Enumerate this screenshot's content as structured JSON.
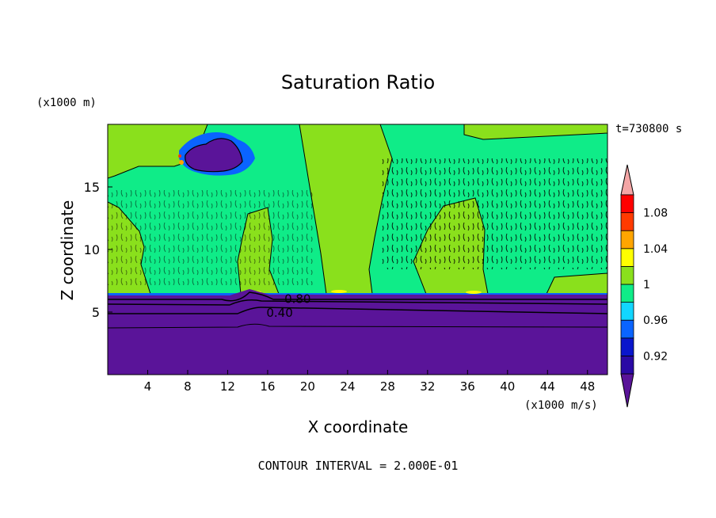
{
  "chart_data": {
    "type": "heatmap",
    "title": "Saturation Ratio",
    "xlabel": "X coordinate",
    "ylabel": "Z coordinate",
    "x_unit": "(x1000 m/s)",
    "y_unit": "(x1000 m)",
    "time_label": "t=730800 s",
    "footer": "CONTOUR INTERVAL = 2.000E-01",
    "xlim": [
      0,
      50
    ],
    "ylim": [
      0,
      20
    ],
    "x_ticks": [
      4,
      8,
      12,
      16,
      20,
      24,
      28,
      32,
      36,
      40,
      44,
      48
    ],
    "y_ticks": [
      5,
      10,
      15
    ],
    "colorbar": {
      "levels": [
        0.9,
        0.92,
        0.94,
        0.96,
        0.98,
        1.0,
        1.02,
        1.04,
        1.06,
        1.08,
        1.1
      ],
      "tick_labels": [
        "0.92",
        "0.96",
        "1",
        "1.04",
        "1.08"
      ],
      "tick_values": [
        0.92,
        0.96,
        1.0,
        1.04,
        1.08
      ],
      "colors": [
        "#5a1499",
        "#2a0aa5",
        "#0a16cc",
        "#0a64ff",
        "#12d6ff",
        "#0fec88",
        "#8ae01c",
        "#ffff00",
        "#ffa500",
        "#ff3a00",
        "#ff0000",
        "#f4a6a6"
      ],
      "extend": "both"
    },
    "contour_labels": [
      {
        "text": "0.80",
        "x": 19.0,
        "z": 6.1
      },
      {
        "text": "0.40",
        "x": 17.2,
        "z": 5.0
      }
    ],
    "regions": [
      {
        "description_value": "below 0.90",
        "z_range": [
          0,
          6.3
        ]
      },
      {
        "description_value": "0.98-1.00",
        "z_range": [
          6.3,
          20
        ]
      },
      {
        "description_value": "1.00-1.02",
        "x_ranges": [
          [
            0,
            2
          ],
          [
            13,
            16
          ],
          [
            20,
            27
          ],
          [
            31,
            37
          ]
        ]
      }
    ]
  }
}
